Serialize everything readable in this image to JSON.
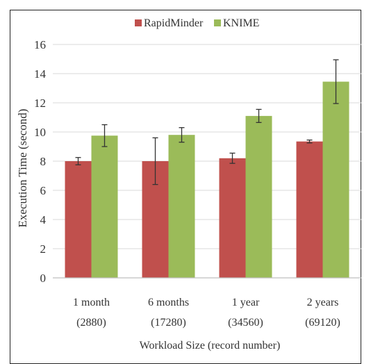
{
  "chart_data": {
    "type": "bar",
    "title": "",
    "xlabel": "Workload Size (record number)",
    "ylabel": "Execution Time (second)",
    "ylim": [
      0,
      16
    ],
    "yticks": [
      "0",
      "2",
      "4",
      "6",
      "8",
      "10",
      "12",
      "14",
      "16"
    ],
    "grid": true,
    "legend_position": "top-center",
    "categories": [
      {
        "line1": "1 month",
        "line2": "(2880)"
      },
      {
        "line1": "6 months",
        "line2": "(17280)"
      },
      {
        "line1": "1 year",
        "line2": "(34560)"
      },
      {
        "line1": "2 years",
        "line2": "(69120)"
      }
    ],
    "series": [
      {
        "name": "RapidMinder",
        "color": "#c0504d",
        "values": [
          8.0,
          8.0,
          8.2,
          9.35
        ],
        "errors": [
          0.25,
          1.6,
          0.35,
          0.1
        ]
      },
      {
        "name": "KNIME",
        "color": "#9bbb59",
        "values": [
          9.75,
          9.8,
          11.1,
          13.45
        ],
        "errors": [
          0.75,
          0.5,
          0.45,
          1.5
        ]
      }
    ]
  }
}
